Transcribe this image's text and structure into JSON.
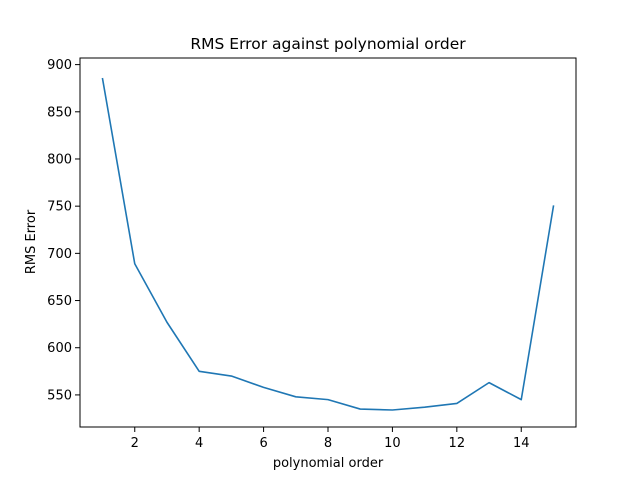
{
  "chart_data": {
    "type": "line",
    "title": "RMS Error against polynomial order",
    "xlabel": "polynomial order",
    "ylabel": "RMS Error",
    "xlim": [
      0.3,
      15.7
    ],
    "ylim": [
      516,
      907
    ],
    "xticks": [
      2,
      4,
      6,
      8,
      10,
      12,
      14
    ],
    "yticks": [
      550,
      600,
      650,
      700,
      750,
      800,
      850,
      900
    ],
    "grid": false,
    "series": [
      {
        "color": "#1f77b4",
        "x": [
          1,
          2,
          3,
          4,
          5,
          6,
          7,
          8,
          9,
          10,
          11,
          12,
          13,
          14,
          15
        ],
        "y": [
          885,
          689,
          627,
          575,
          570,
          558,
          548,
          545,
          535,
          534,
          537,
          541,
          563,
          545,
          750
        ]
      }
    ]
  }
}
